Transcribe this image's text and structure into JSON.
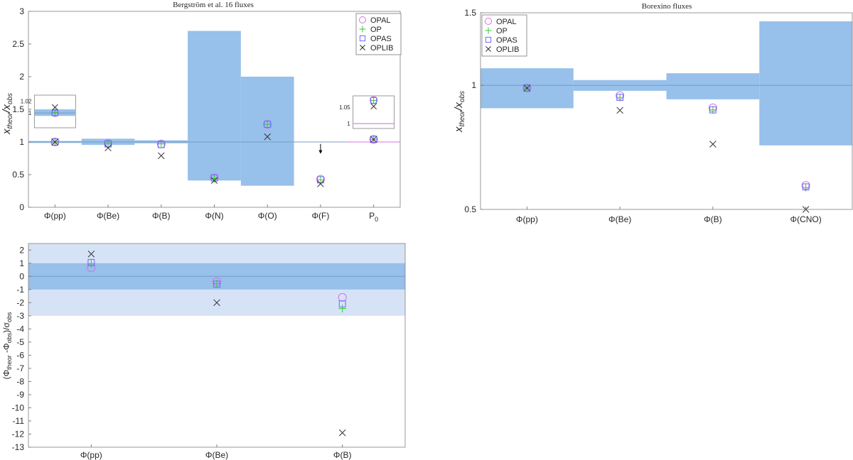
{
  "colors": {
    "band": "#97c0ea",
    "band_light": "#d6e3f6",
    "ref_line": "#7a9bc0",
    "opal": "#d86fe8",
    "op": "#33cc33",
    "opas": "#6b6bff",
    "oplib": "#333333"
  },
  "chart_data": [
    {
      "id": "bergstrom",
      "type": "scatter",
      "title": "Bergström et al. 16 fluxes",
      "ylabel_main": "x",
      "ylabel_sub": "theor",
      "ylabel_sep": "/x",
      "ylabel_sub2": "obs",
      "categories": [
        "Φ(pp)",
        "Φ(Be)",
        "Φ(B)",
        "Φ(N)",
        "Φ(O)",
        "Φ(F)",
        "P"
      ],
      "p_subscript": "0",
      "ylim": [
        0,
        3
      ],
      "yticks": [
        "0",
        "0.5",
        "1",
        "1.5",
        "2",
        "2.5",
        "3"
      ],
      "reference": 1,
      "bands": [
        [
          0.985,
          1.015
        ],
        [
          0.955,
          1.05
        ],
        [
          0.98,
          1.025
        ],
        [
          0.41,
          2.7
        ],
        [
          0.33,
          2.0
        ],
        null,
        null
      ],
      "upper_limit_arrow": {
        "category": "Φ(F)",
        "y_from": 0.97,
        "y_to": 0.83
      },
      "legend": [
        "OPAL",
        "OP",
        "OPAS",
        "OPLIB"
      ],
      "series": [
        {
          "name": "OPAL",
          "values": [
            1.0,
            0.98,
            0.97,
            0.45,
            1.27,
            0.43,
            1.04
          ]
        },
        {
          "name": "OP",
          "values": [
            1.0,
            0.98,
            0.97,
            0.44,
            1.27,
            0.42,
            1.04
          ]
        },
        {
          "name": "OPAS",
          "values": [
            1.0,
            0.97,
            0.96,
            0.45,
            1.27,
            0.42,
            1.04
          ]
        },
        {
          "name": "OPLIB",
          "values": [
            1.0,
            0.91,
            0.79,
            0.41,
            1.08,
            0.36,
            1.04
          ]
        }
      ],
      "insets": [
        {
          "category": "Φ(pp)",
          "tick_labels": [
            "1.02",
            "1"
          ],
          "tick_values": [
            1.02,
            1.0
          ],
          "ylim": [
            0.975,
            1.03
          ],
          "band": [
            0.995,
            1.006
          ],
          "reference": 1.0,
          "series": [
            1.0,
            1.001,
            1.0,
            1.0095
          ]
        },
        {
          "category": "P",
          "tick_labels": [
            "1.05",
            "1"
          ],
          "tick_values": [
            1.05,
            1.0
          ],
          "ylim": [
            0.985,
            1.085
          ],
          "band": [
            0.999,
            1.001
          ],
          "reference": 1.0,
          "series": [
            1.072,
            1.071,
            1.071,
            1.053
          ]
        }
      ]
    },
    {
      "id": "borexino",
      "type": "scatter",
      "title": "Borexino fluxes",
      "ylabel_main": "x",
      "ylabel_sub": "theor",
      "ylabel_sep": "/x",
      "ylabel_sub2": "obs",
      "categories": [
        "Φ(pp)",
        "Φ(Be)",
        "Φ(B)",
        "Φ(CNO)"
      ],
      "ylim": [
        0.5,
        1.5
      ],
      "yscale": "log",
      "yticks": [
        "0.5",
        "1",
        "1.5"
      ],
      "ytick_values": [
        0.5,
        1,
        1.5
      ],
      "reference": 1,
      "bands": [
        [
          0.88,
          1.1
        ],
        [
          0.97,
          1.03
        ],
        [
          0.925,
          1.07
        ],
        [
          0.715,
          1.43
        ]
      ],
      "legend": [
        "OPAL",
        "OP",
        "OPAS",
        "OPLIB"
      ],
      "series": [
        {
          "name": "OPAL",
          "values": [
            0.985,
            0.945,
            0.882,
            0.572
          ]
        },
        {
          "name": "OP",
          "values": [
            0.985,
            0.935,
            0.872,
            0.565
          ]
        },
        {
          "name": "OPAS",
          "values": [
            0.985,
            0.935,
            0.872,
            0.567
          ]
        },
        {
          "name": "OPLIB",
          "values": [
            0.985,
            0.87,
            0.72,
            0.5
          ]
        }
      ]
    },
    {
      "id": "pulls",
      "type": "scatter",
      "title": "",
      "ylabel": "(Φ",
      "ylabel_parts": [
        "(Φ",
        "theor",
        " -Φ",
        "obs",
        ")/σ",
        "obs"
      ],
      "categories": [
        "Φ(pp)",
        "Φ(Be)",
        "Φ(B)"
      ],
      "ylim": [
        -13,
        2.5
      ],
      "yticks": [
        "2",
        "1",
        "0",
        "-1",
        "-2",
        "-3",
        "-4",
        "-5",
        "-6",
        "-7",
        "-8",
        "-9",
        "-10",
        "-11",
        "-12",
        "-13"
      ],
      "ytick_values": [
        2,
        1,
        0,
        -1,
        -2,
        -3,
        -4,
        -5,
        -6,
        -7,
        -8,
        -9,
        -10,
        -11,
        -12,
        -13
      ],
      "reference": 0,
      "bands": [
        [
          -1,
          1
        ]
      ],
      "bands_light": [
        [
          -3,
          2.5
        ]
      ],
      "series": [
        {
          "name": "OPAL",
          "values": [
            0.65,
            -0.4,
            -1.6
          ]
        },
        {
          "name": "OP",
          "values": [
            0.95,
            -0.55,
            -2.45
          ]
        },
        {
          "name": "OPAS",
          "values": [
            1.05,
            -0.6,
            -2.1
          ]
        },
        {
          "name": "OPLIB",
          "values": [
            1.7,
            -2.0,
            -11.9
          ]
        }
      ]
    }
  ]
}
